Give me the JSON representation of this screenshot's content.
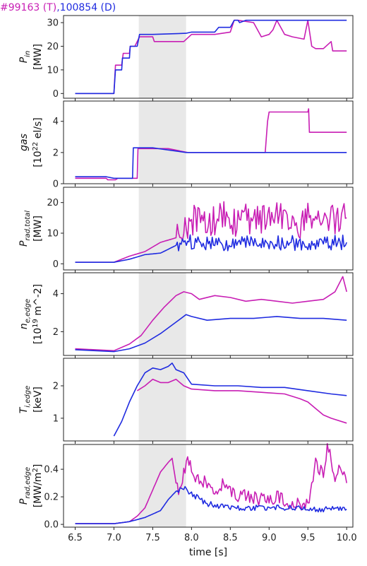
{
  "legend": {
    "run1": "#99163 (T)",
    "separator": ",",
    "run2": "100854 (D)",
    "run1_color": "#c81eb4",
    "run2_color": "#1f2be0"
  },
  "shaded_region": {
    "x": [
      7.32,
      7.93
    ],
    "color": "#e8e8e8"
  },
  "chart_data": [
    {
      "type": "line",
      "ylabel": [
        "P_in",
        "[MW]"
      ],
      "ylim": [
        -2,
        33
      ],
      "yticks": [
        0,
        10,
        20,
        30
      ],
      "xlim": [
        6.35,
        10.08
      ],
      "series": [
        {
          "name": "#99163 (T)",
          "color": "#c81eb4",
          "x": [
            6.5,
            7.0,
            7.02,
            7.1,
            7.12,
            7.2,
            7.21,
            7.26,
            7.27,
            7.33,
            7.5,
            7.52,
            7.9,
            8.0,
            8.3,
            8.4,
            8.5,
            8.55,
            8.6,
            8.8,
            8.9,
            9.0,
            9.05,
            9.1,
            9.2,
            9.3,
            9.45,
            9.5,
            9.55,
            9.6,
            9.7,
            9.8,
            9.82,
            9.9,
            10.0
          ],
          "y": [
            0,
            0,
            12,
            12,
            17,
            17,
            20,
            20,
            20,
            24,
            24,
            22,
            22,
            25,
            25,
            25.5,
            26,
            31,
            31,
            30,
            24,
            25,
            27,
            31,
            25,
            24,
            23,
            31,
            20,
            19,
            19,
            22,
            18,
            18,
            18
          ]
        },
        {
          "name": "100854 (D)",
          "color": "#1f2be0",
          "x": [
            6.5,
            7.0,
            7.02,
            7.1,
            7.11,
            7.2,
            7.21,
            7.3,
            7.33,
            7.5,
            7.93,
            8.0,
            8.3,
            8.35,
            8.5,
            8.55,
            8.6,
            8.62,
            8.7,
            8.9,
            9.0,
            9.1,
            9.12,
            9.2,
            9.3,
            9.32,
            9.5,
            10.0
          ],
          "y": [
            0,
            0,
            10,
            10,
            15,
            15,
            20,
            20,
            25,
            25,
            25.5,
            26,
            26,
            28,
            28,
            31,
            31,
            30,
            31,
            31,
            31,
            31,
            31,
            31,
            31,
            31,
            31,
            31
          ]
        }
      ]
    },
    {
      "type": "line",
      "ylabel": [
        "gas",
        "[10^22 el/s]"
      ],
      "ylim": [
        0,
        5.3
      ],
      "yticks": [
        0,
        2,
        4
      ],
      "xlim": [
        6.35,
        10.08
      ],
      "series": [
        {
          "name": "#99163 (T)",
          "color": "#c81eb4",
          "x": [
            6.5,
            6.9,
            6.92,
            7.02,
            7.05,
            7.3,
            7.31,
            7.7,
            7.85,
            7.95,
            8.5,
            8.95,
            8.98,
            9.0,
            9.5,
            9.51,
            9.52,
            10.0
          ],
          "y": [
            0.35,
            0.35,
            0.25,
            0.25,
            0.35,
            0.35,
            2.25,
            2.25,
            2.1,
            2.0,
            2.0,
            2.0,
            4.0,
            4.6,
            4.6,
            4.8,
            3.3,
            3.3
          ]
        },
        {
          "name": "100854 (D)",
          "color": "#1f2be0",
          "x": [
            6.5,
            6.9,
            7.0,
            7.24,
            7.25,
            7.5,
            7.93,
            8.5,
            9.0,
            10.0
          ],
          "y": [
            0.45,
            0.45,
            0.35,
            0.35,
            2.3,
            2.3,
            2.0,
            2.0,
            2.0,
            2.0
          ]
        }
      ]
    },
    {
      "type": "line",
      "ylabel": [
        "P_rad,total",
        "[MW]"
      ],
      "ylim": [
        -2,
        25
      ],
      "yticks": [
        0,
        10,
        20
      ],
      "xlim": [
        6.35,
        10.08
      ],
      "series": [
        {
          "name": "#99163 (T)",
          "color": "#c81eb4",
          "x": [
            6.5,
            7.0,
            7.2,
            7.4,
            7.6,
            7.8,
            7.9,
            7.95,
            8.0,
            8.1,
            8.2,
            8.3,
            8.4,
            8.5,
            8.6,
            8.7,
            8.8,
            8.9,
            9.0,
            9.1,
            9.2,
            9.3,
            9.4,
            9.5,
            9.6,
            9.7,
            9.8,
            9.9,
            10.0
          ],
          "y": [
            0.5,
            0.5,
            2.5,
            4,
            7,
            8.5,
            9.5,
            12,
            14,
            15,
            13,
            14,
            16,
            12,
            14,
            16,
            13,
            15,
            14,
            16,
            14,
            15,
            13,
            16,
            13,
            14,
            15,
            14,
            15
          ]
        },
        {
          "name": "100854 (D)",
          "color": "#1f2be0",
          "x": [
            6.5,
            7.0,
            7.2,
            7.4,
            7.6,
            7.8,
            7.9,
            8.0,
            8.2,
            8.4,
            8.6,
            8.8,
            9.0,
            9.2,
            9.4,
            9.6,
            9.8,
            10.0
          ],
          "y": [
            0.5,
            0.5,
            1.5,
            3,
            3.5,
            6,
            7,
            7,
            7,
            6.5,
            7,
            6.5,
            7,
            7,
            6.5,
            7,
            7,
            7
          ]
        }
      ]
    },
    {
      "type": "line",
      "ylabel": [
        "n_e,edge",
        "[10^19 m^-2]"
      ],
      "ylim": [
        0.75,
        5.1
      ],
      "yticks": [
        2,
        4
      ],
      "xlim": [
        6.35,
        10.08
      ],
      "series": [
        {
          "name": "#99163 (T)",
          "color": "#c81eb4",
          "x": [
            6.5,
            7.0,
            7.2,
            7.35,
            7.5,
            7.65,
            7.8,
            7.9,
            8.0,
            8.1,
            8.3,
            8.5,
            8.7,
            8.9,
            9.1,
            9.3,
            9.5,
            9.7,
            9.85,
            9.95,
            10.0
          ],
          "y": [
            1.1,
            1.0,
            1.35,
            1.8,
            2.6,
            3.3,
            3.9,
            4.1,
            4.0,
            3.7,
            3.9,
            3.8,
            3.6,
            3.7,
            3.6,
            3.5,
            3.6,
            3.7,
            4.1,
            4.9,
            4.1
          ]
        },
        {
          "name": "100854 (D)",
          "color": "#1f2be0",
          "x": [
            6.5,
            7.0,
            7.2,
            7.4,
            7.6,
            7.8,
            7.93,
            8.0,
            8.2,
            8.5,
            8.8,
            9.1,
            9.4,
            9.7,
            10.0
          ],
          "y": [
            1.05,
            0.95,
            1.1,
            1.4,
            1.9,
            2.5,
            2.9,
            2.8,
            2.6,
            2.7,
            2.7,
            2.8,
            2.7,
            2.7,
            2.6
          ]
        }
      ]
    },
    {
      "type": "line",
      "ylabel": [
        "T_i,edge",
        "[keV]"
      ],
      "ylim": [
        0.3,
        2.85
      ],
      "yticks": [
        1,
        2
      ],
      "xlim": [
        6.35,
        10.08
      ],
      "series": [
        {
          "name": "#99163 (T)",
          "color": "#c81eb4",
          "x": [
            7.3,
            7.4,
            7.5,
            7.6,
            7.7,
            7.8,
            7.9,
            8.0,
            8.3,
            8.6,
            8.9,
            9.2,
            9.4,
            9.5,
            9.6,
            9.7,
            9.8,
            10.0
          ],
          "y": [
            1.85,
            2.0,
            2.2,
            2.1,
            2.1,
            2.2,
            2.0,
            1.9,
            1.85,
            1.85,
            1.8,
            1.75,
            1.6,
            1.5,
            1.3,
            1.1,
            1.0,
            0.85
          ]
        },
        {
          "name": "100854 (D)",
          "color": "#1f2be0",
          "x": [
            7.0,
            7.1,
            7.2,
            7.3,
            7.4,
            7.5,
            7.6,
            7.7,
            7.75,
            7.8,
            7.9,
            8.0,
            8.3,
            8.6,
            8.9,
            9.2,
            9.5,
            9.8,
            10.0
          ],
          "y": [
            0.45,
            0.9,
            1.5,
            2.0,
            2.4,
            2.55,
            2.5,
            2.6,
            2.7,
            2.5,
            2.4,
            2.05,
            2.0,
            2.0,
            1.95,
            1.95,
            1.85,
            1.75,
            1.7
          ]
        }
      ]
    },
    {
      "type": "line",
      "ylabel": [
        "P_rad,edge",
        "[MW/m^2]"
      ],
      "ylim": [
        -0.02,
        0.58
      ],
      "yticks": [
        0.0,
        0.2,
        0.4
      ],
      "xticks": [
        6.5,
        7.0,
        7.5,
        8.0,
        8.5,
        9.0,
        9.5,
        10.0
      ],
      "xlabel": "time [s]",
      "xlim": [
        6.35,
        10.08
      ],
      "series": [
        {
          "name": "#99163 (T)",
          "color": "#c81eb4",
          "x": [
            6.5,
            7.0,
            7.2,
            7.3,
            7.4,
            7.5,
            7.6,
            7.7,
            7.75,
            7.8,
            7.85,
            7.9,
            7.95,
            8.05,
            8.2,
            8.3,
            8.4,
            8.5,
            8.6,
            8.7,
            8.9,
            9.1,
            9.3,
            9.5,
            9.6,
            9.7,
            9.75,
            9.8,
            9.85,
            9.9,
            10.0
          ],
          "y": [
            0.005,
            0.005,
            0.02,
            0.06,
            0.12,
            0.25,
            0.38,
            0.45,
            0.48,
            0.3,
            0.25,
            0.4,
            0.45,
            0.35,
            0.3,
            0.2,
            0.3,
            0.25,
            0.2,
            0.22,
            0.18,
            0.2,
            0.15,
            0.14,
            0.45,
            0.35,
            0.55,
            0.5,
            0.3,
            0.42,
            0.3
          ]
        },
        {
          "name": "100854 (D)",
          "color": "#1f2be0",
          "x": [
            6.5,
            7.0,
            7.2,
            7.4,
            7.6,
            7.7,
            7.8,
            7.9,
            8.0,
            8.2,
            8.4,
            8.6,
            8.8,
            9.0,
            9.3,
            9.6,
            9.8,
            10.0
          ],
          "y": [
            0.005,
            0.005,
            0.02,
            0.05,
            0.1,
            0.18,
            0.24,
            0.27,
            0.22,
            0.15,
            0.13,
            0.12,
            0.12,
            0.12,
            0.12,
            0.11,
            0.11,
            0.11
          ]
        }
      ]
    }
  ]
}
